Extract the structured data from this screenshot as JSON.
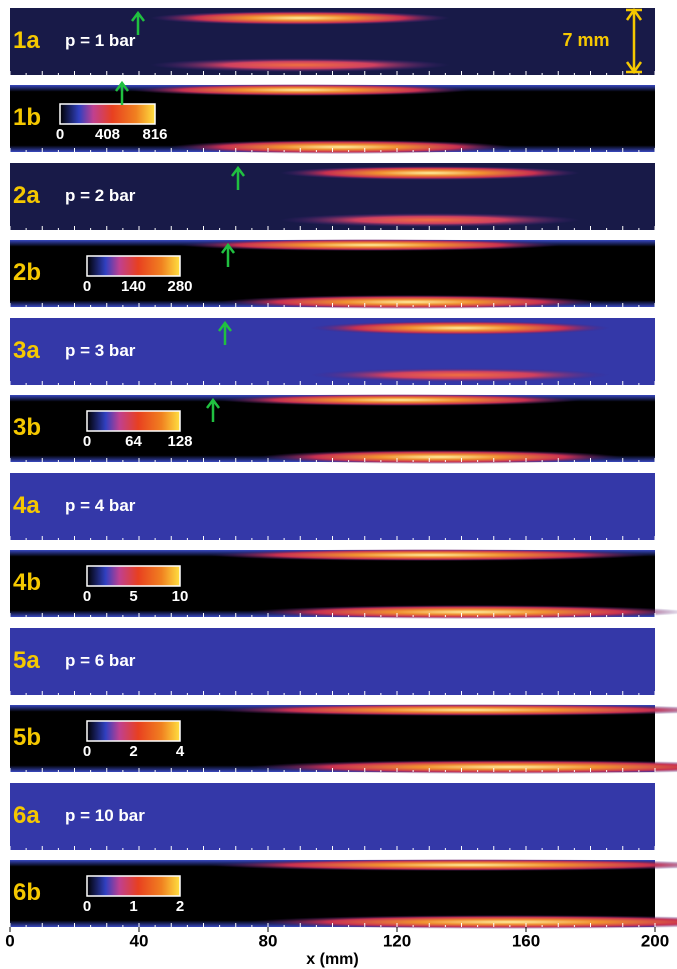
{
  "panels": [
    {
      "label": "1a",
      "pressure": "p = 1 bar"
    },
    {
      "label": "1b",
      "colorbar": [
        0,
        408,
        816
      ]
    },
    {
      "label": "2a",
      "pressure": "p = 2 bar"
    },
    {
      "label": "2b",
      "colorbar": [
        0,
        140,
        280
      ]
    },
    {
      "label": "3a",
      "pressure": "p = 3 bar"
    },
    {
      "label": "3b",
      "colorbar": [
        0,
        64,
        128
      ]
    },
    {
      "label": "4a",
      "pressure": "p = 4 bar"
    },
    {
      "label": "4b",
      "colorbar": [
        0,
        5,
        10
      ]
    },
    {
      "label": "5a",
      "pressure": "p = 6 bar"
    },
    {
      "label": "5b",
      "colorbar": [
        0,
        2,
        4
      ]
    },
    {
      "label": "6a",
      "pressure": "p = 10 bar"
    },
    {
      "label": "6b",
      "colorbar": [
        0,
        1,
        2
      ]
    }
  ],
  "scale_bar": "7 mm",
  "x_axis": {
    "ticks": [
      0,
      40,
      80,
      120,
      160,
      200
    ],
    "label": "x (mm)",
    "lim": [
      0,
      200
    ]
  }
}
